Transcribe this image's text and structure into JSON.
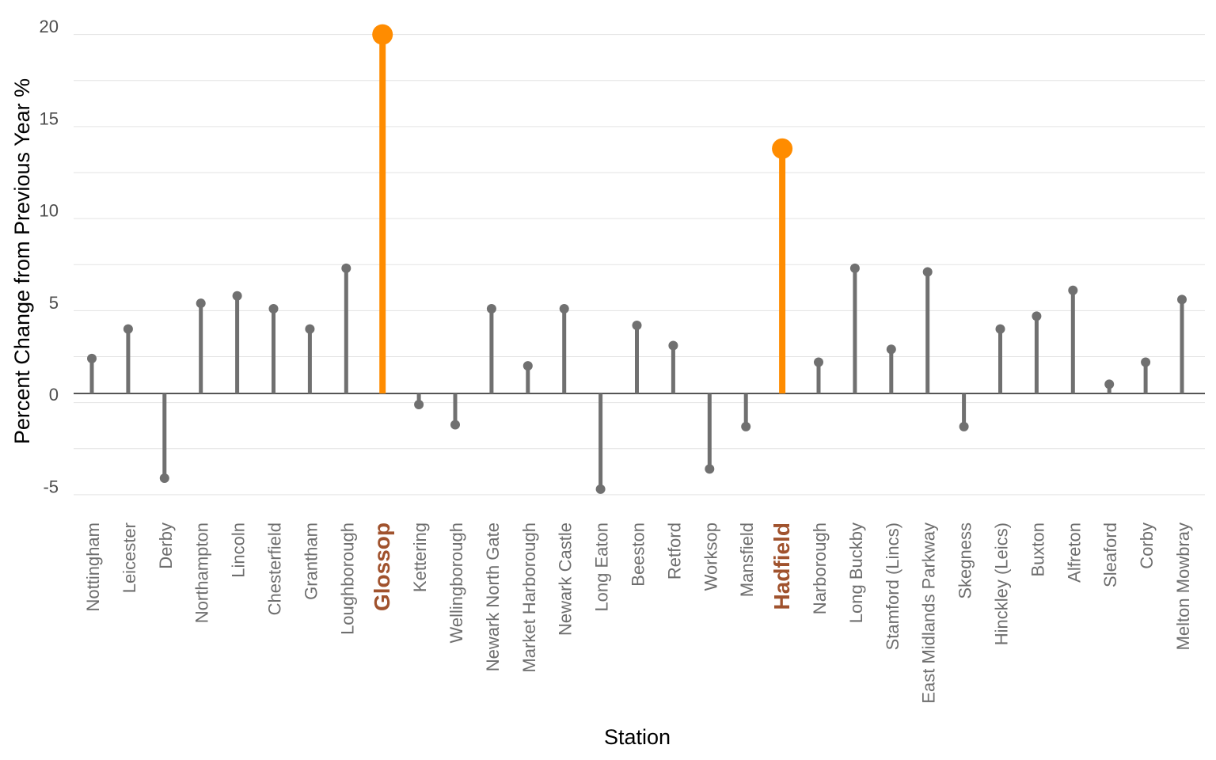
{
  "chart_data": {
    "type": "lollipop",
    "title": "",
    "xlabel": "Station",
    "ylabel": "Percent Change from Previous Year %",
    "ylim": [
      -6,
      21
    ],
    "yticks": [
      -5,
      0,
      5,
      10,
      15,
      20
    ],
    "grid": true,
    "legend": "none",
    "categories": [
      "Nottingham",
      "Leicester",
      "Derby",
      "Northampton",
      "Lincoln",
      "Chesterfield",
      "Grantham",
      "Loughborough",
      "Glossop",
      "Kettering",
      "Wellingborough",
      "Newark North Gate",
      "Market Harborough",
      "Newark Castle",
      "Long Eaton",
      "Beeston",
      "Retford",
      "Worksop",
      "Mansfield",
      "Hadfield",
      "Narborough",
      "Long Buckby",
      "Stamford (Lincs)",
      "East Midlands Parkway",
      "Skegness",
      "Hinckley (Leics)",
      "Buxton",
      "Alfreton",
      "Sleaford",
      "Corby",
      "Melton Mowbray"
    ],
    "values": [
      1.9,
      3.5,
      -4.6,
      4.9,
      5.3,
      4.6,
      3.5,
      6.8,
      19.5,
      -0.6,
      -1.7,
      4.6,
      1.5,
      4.6,
      -5.2,
      3.7,
      2.6,
      -4.1,
      -1.8,
      13.3,
      1.7,
      6.8,
      2.4,
      6.6,
      -1.8,
      3.5,
      4.2,
      5.6,
      0.5,
      1.7,
      5.1
    ],
    "highlighted": [
      "Glossop",
      "Hadfield"
    ],
    "colors": {
      "default": "#707070",
      "highlight": "#ff8c00",
      "highlight_label": "#a0522d",
      "label": "#6e6e6e",
      "grid": "#e3e3e3",
      "zero_line": "#555555"
    }
  }
}
